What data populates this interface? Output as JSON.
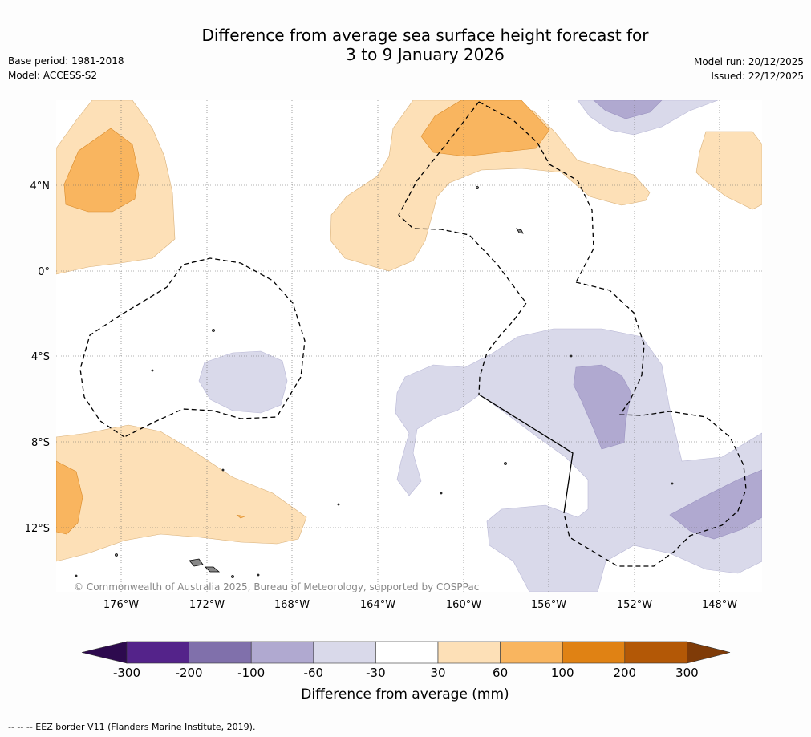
{
  "title_line1": "Difference from average sea surface height forecast for",
  "title_line2": "3 to 9 January 2026",
  "base_period": "Base period: 1981-2018",
  "model": "Model: ACCESS-S2",
  "model_run": "Model run: 20/12/2025",
  "issued": "Issued: 22/12/2025",
  "copyright": "© Commonwealth of Australia 2025, Bureau of Meteorology, supported by COSPPac",
  "lon_labels": [
    "176°W",
    "172°W",
    "168°W",
    "164°W",
    "160°W",
    "156°W",
    "152°W",
    "148°W"
  ],
  "lat_labels": [
    "4°N",
    "0°",
    "4°S",
    "8°S",
    "12°S"
  ],
  "colorbar": {
    "title": "Difference from average (mm)",
    "ticks": [
      "-300",
      "-200",
      "-100",
      "-60",
      "-30",
      "30",
      "60",
      "100",
      "200",
      "300"
    ],
    "colors": [
      "#2d0a4e",
      "#54238a",
      "#8070ab",
      "#b0a9d0",
      "#d9d9ea",
      "#ffffff",
      "#fde0b7",
      "#f9b55f",
      "#e08214",
      "#b35806",
      "#7f3b08"
    ]
  },
  "footer": "--  --  -- EEZ border V11 (Flanders Marine Institute, 2019)."
}
